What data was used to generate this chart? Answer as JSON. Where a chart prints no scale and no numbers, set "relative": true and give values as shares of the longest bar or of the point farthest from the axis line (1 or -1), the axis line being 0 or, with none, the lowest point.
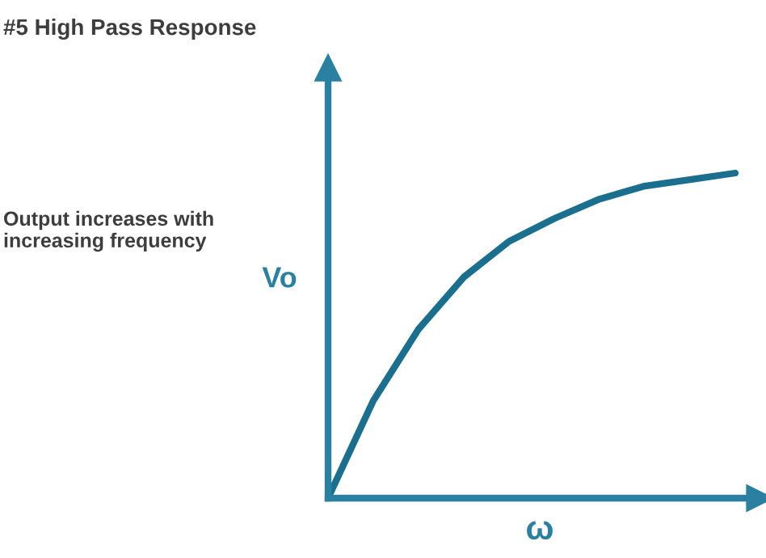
{
  "chart_data": {
    "type": "line",
    "title": "#5 High Pass Response",
    "xlabel": "ω",
    "ylabel": "Vo",
    "annotations": [
      "Output increases with\nincreasing frequency"
    ],
    "relative": true,
    "grid": false,
    "legend": false,
    "marker": "none",
    "line_style": "solid",
    "categories": [
      null,
      null,
      null,
      null,
      null,
      null,
      null,
      null,
      null,
      null
    ],
    "series": [
      {
        "color": "#1b6f8e",
        "values": [
          0,
          0.3,
          0.52,
          0.68,
          0.79,
          0.86,
          0.92,
          0.96,
          0.98,
          1.0
        ]
      }
    ]
  }
}
